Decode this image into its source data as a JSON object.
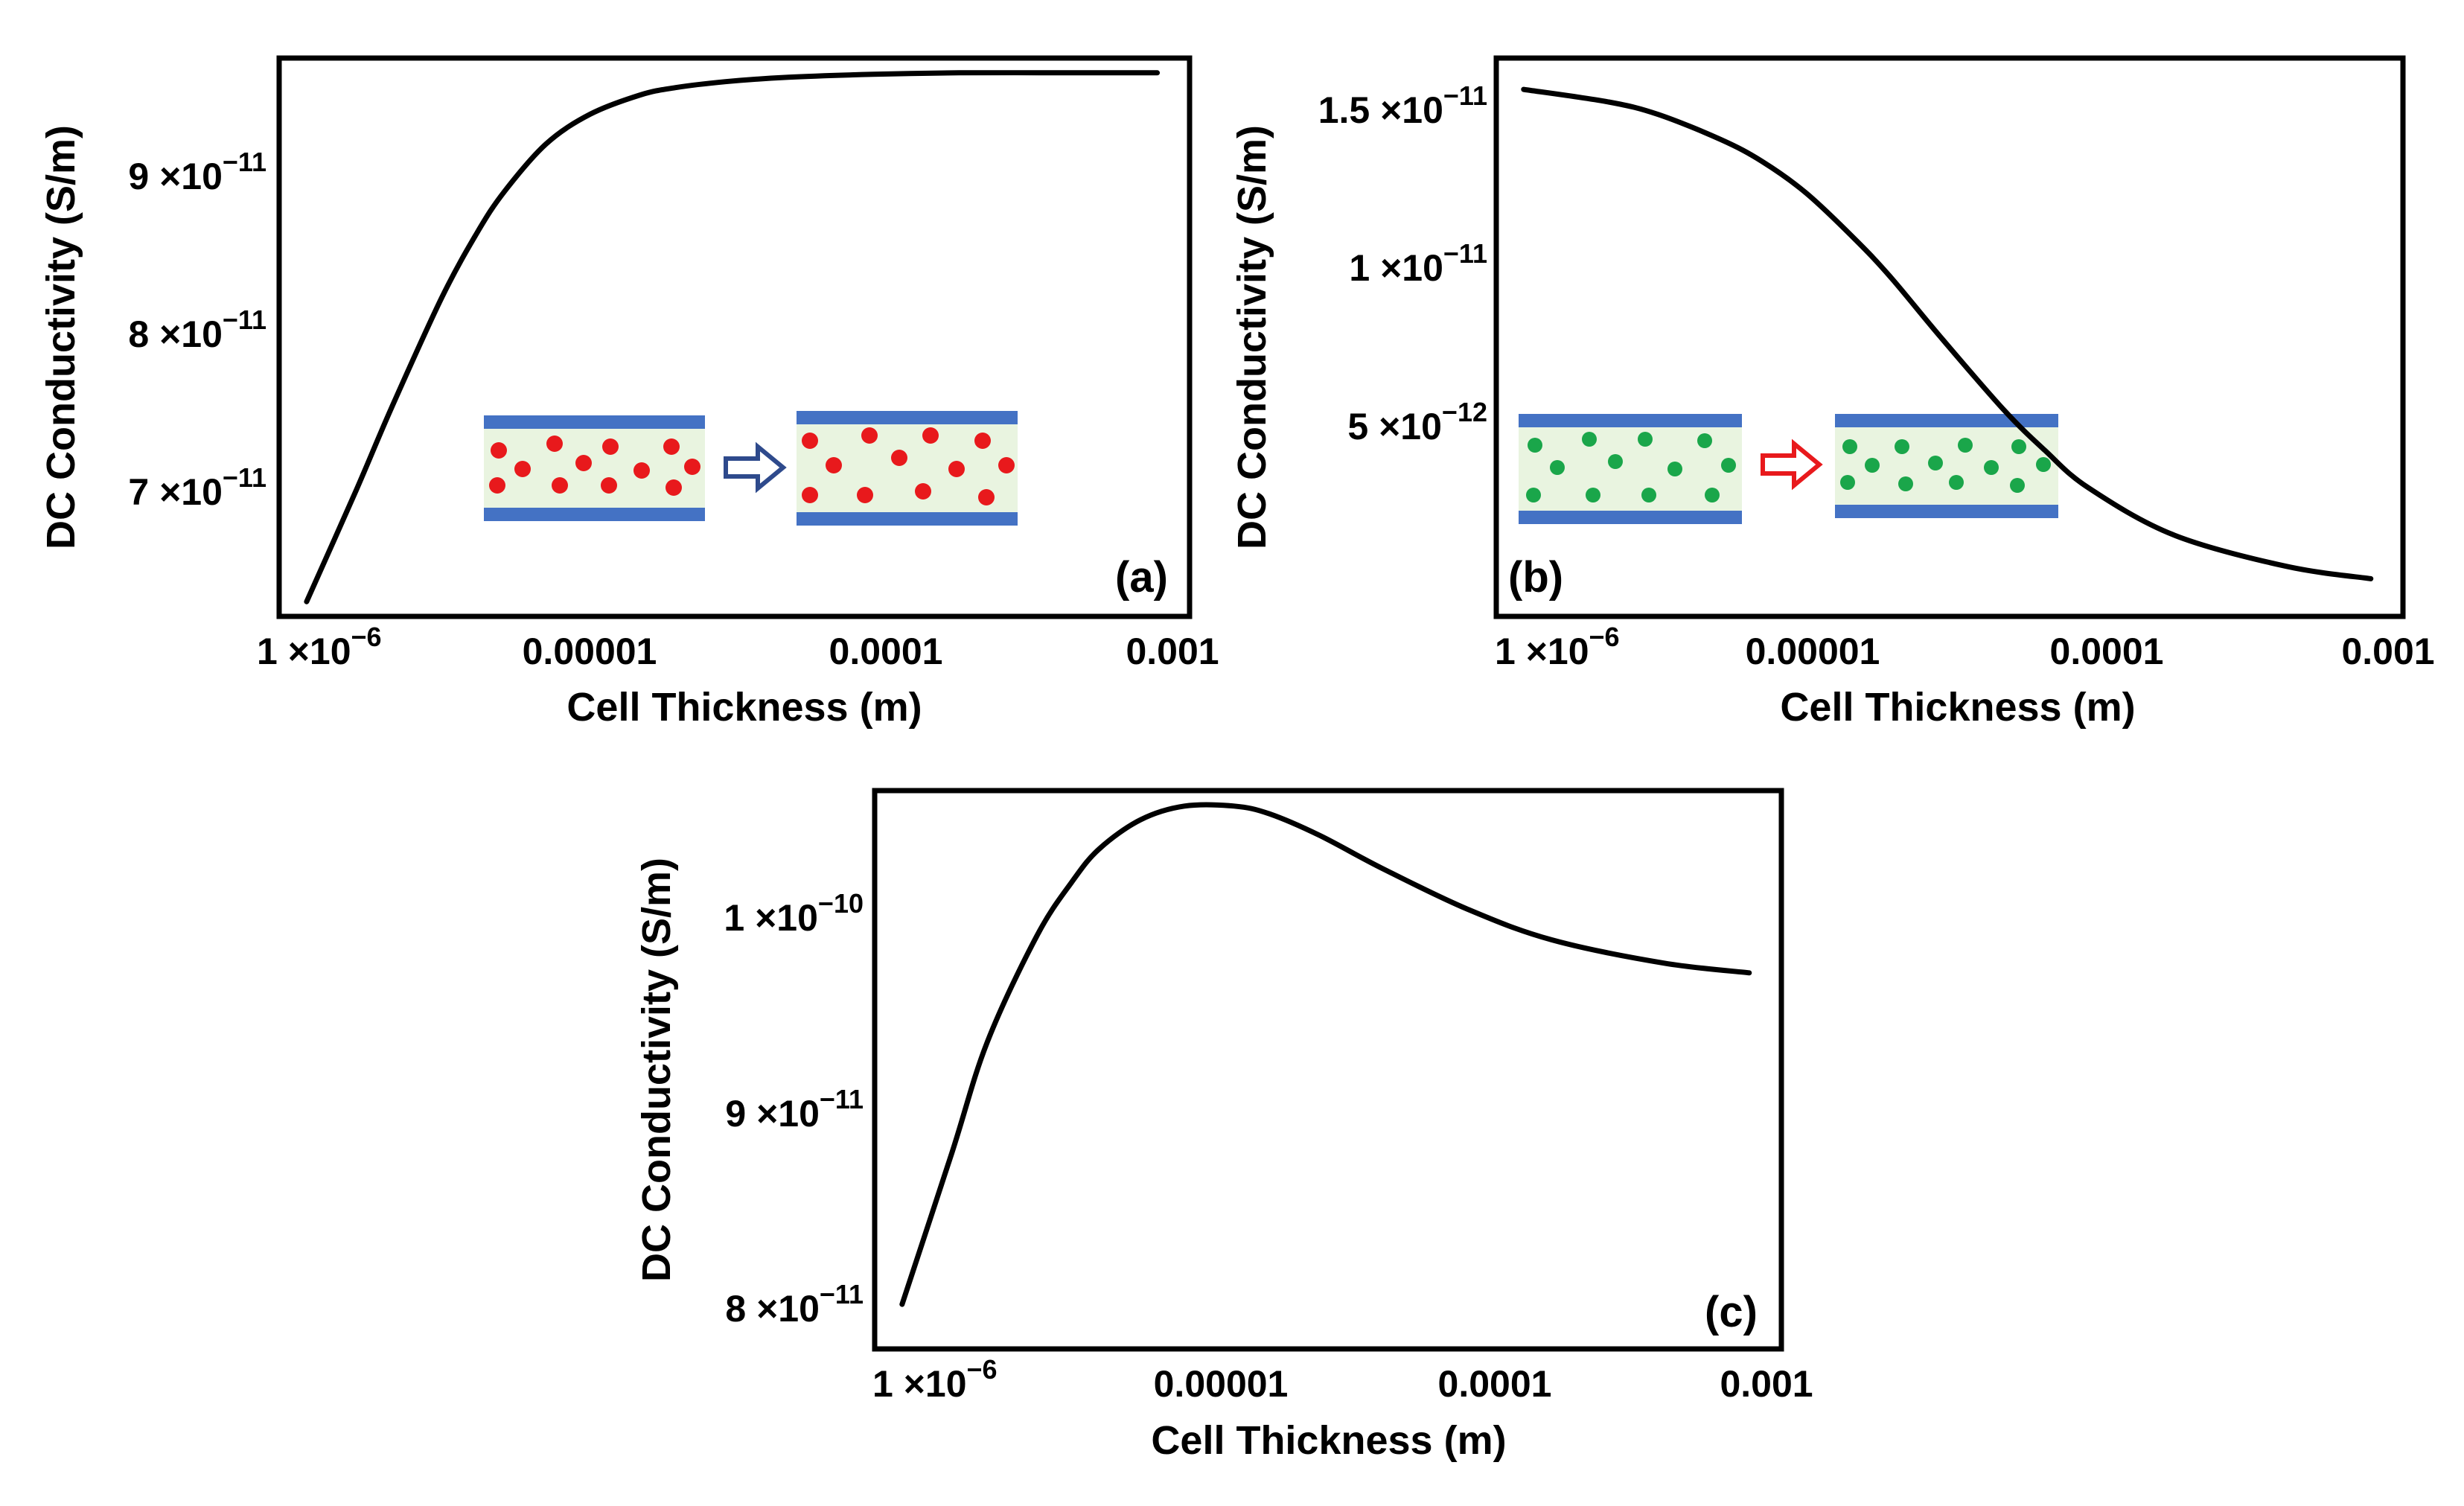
{
  "chart_data": [
    {
      "type": "line",
      "panel_label": "(a)",
      "xlabel": "Cell Thickness (m)",
      "ylabel": "DC Conductivity (S/m)",
      "x_scale": "log",
      "xlim": [
        8e-07,
        0.0013
      ],
      "ylim": [
        6.1e-11,
        9.88e-11
      ],
      "x_ticks": [
        {
          "value": 1e-06,
          "label": "1 ×10",
          "exp": "−6"
        },
        {
          "value": 1e-05,
          "label": "0.00001",
          "exp": ""
        },
        {
          "value": 0.0001,
          "label": "0.0001",
          "exp": ""
        },
        {
          "value": 0.001,
          "label": "0.001",
          "exp": ""
        }
      ],
      "y_ticks": [
        {
          "value": 7e-11,
          "label": "7 ×10",
          "exp": "−11"
        },
        {
          "value": 8e-11,
          "label": "8 ×10",
          "exp": "−11"
        },
        {
          "value": 9e-11,
          "label": "9 ×10",
          "exp": "−11"
        }
      ],
      "series": [
        {
          "name": "sigma_dc",
          "x": [
            1e-06,
            1.5e-06,
            2e-06,
            3e-06,
            4e-06,
            5e-06,
            7e-06,
            1e-05,
            1.5e-05,
            2e-05,
            3e-05,
            5e-05,
            0.0001,
            0.0002,
            0.0005,
            0.001
          ],
          "y": [
            6.2e-11,
            6.96e-11,
            7.52e-11,
            8.26e-11,
            8.7e-11,
            8.98e-11,
            9.3e-11,
            9.5e-11,
            9.63e-11,
            9.68e-11,
            9.72e-11,
            9.75e-11,
            9.77e-11,
            9.78e-11,
            9.78e-11,
            9.78e-11
          ]
        }
      ],
      "inset": {
        "particle_color": "#e8191c",
        "arrow_color": "#2e4a8c",
        "plate_color": "#4472c4",
        "fluid_color": "#e9f4e0"
      }
    },
    {
      "type": "line",
      "panel_label": "(b)",
      "xlabel": "Cell Thickness (m)",
      "ylabel": "DC Conductivity (S/m)",
      "x_scale": "log",
      "xlim": [
        8e-07,
        0.0013
      ],
      "ylim": [
        -1e-12,
        1.68e-11
      ],
      "x_ticks": [
        {
          "value": 1e-06,
          "label": "1 ×10",
          "exp": "−6"
        },
        {
          "value": 1e-05,
          "label": "0.00001",
          "exp": ""
        },
        {
          "value": 0.0001,
          "label": "0.0001",
          "exp": ""
        },
        {
          "value": 0.001,
          "label": "0.001",
          "exp": ""
        }
      ],
      "y_ticks": [
        {
          "value": 5e-12,
          "label": "5 ×10",
          "exp": "−12"
        },
        {
          "value": 1e-11,
          "label": "1 ×10",
          "exp": "−11"
        },
        {
          "value": 1.5e-11,
          "label": "1.5 ×10",
          "exp": "−11"
        }
      ],
      "series": [
        {
          "name": "sigma_dc",
          "x": [
            1e-06,
            2e-06,
            3e-06,
            5e-06,
            7e-06,
            1e-05,
            1.5e-05,
            2e-05,
            3e-05,
            5e-05,
            7e-05,
            0.0001,
            0.0002,
            0.0005,
            0.001
          ],
          "y": [
            1.58e-11,
            1.54e-11,
            1.5e-11,
            1.42e-11,
            1.35e-11,
            1.25e-11,
            1.1e-11,
            9.8e-12,
            7.9e-12,
            5.6e-12,
            4.3e-12,
            3.1e-12,
            1.6e-12,
            6e-13,
            2e-13
          ]
        }
      ],
      "inset": {
        "particle_color": "#1aa64a",
        "arrow_color": "#e8191c",
        "plate_color": "#4472c4",
        "fluid_color": "#e9f4e0"
      }
    },
    {
      "type": "line",
      "panel_label": "(c)",
      "xlabel": "Cell Thickness (m)",
      "ylabel": "DC Conductivity (S/m)",
      "x_scale": "log",
      "xlim": [
        8e-07,
        0.0013
      ],
      "ylim": [
        7.72e-11,
        1.06e-10
      ],
      "x_ticks": [
        {
          "value": 1e-06,
          "label": "1 ×10",
          "exp": "−6"
        },
        {
          "value": 1e-05,
          "label": "0.00001",
          "exp": ""
        },
        {
          "value": 0.0001,
          "label": "0.0001",
          "exp": ""
        },
        {
          "value": 0.001,
          "label": "0.001",
          "exp": ""
        }
      ],
      "y_ticks": [
        {
          "value": 8e-11,
          "label": "8 ×10",
          "exp": "−11"
        },
        {
          "value": 9e-11,
          "label": "9 ×10",
          "exp": "−11"
        },
        {
          "value": 1e-10,
          "label": "1 ×10",
          "exp": "−10"
        }
      ],
      "series": [
        {
          "name": "sigma_dc",
          "x": [
            1e-06,
            1.5e-06,
            2e-06,
            3e-06,
            4e-06,
            5e-06,
            7e-06,
            1e-05,
            1.5e-05,
            2e-05,
            3e-05,
            5e-05,
            0.0001,
            0.0002,
            0.0005,
            0.001
          ],
          "y": [
            7.95e-11,
            8.73e-11,
            9.3e-11,
            9.85e-11,
            1.013e-10,
            1.03e-10,
            1.045e-10,
            1.052e-10,
            1.052e-10,
            1.048e-10,
            1.037e-10,
            1.02e-10,
            9.99e-11,
            9.83e-11,
            9.71e-11,
            9.66e-11
          ]
        }
      ]
    }
  ]
}
